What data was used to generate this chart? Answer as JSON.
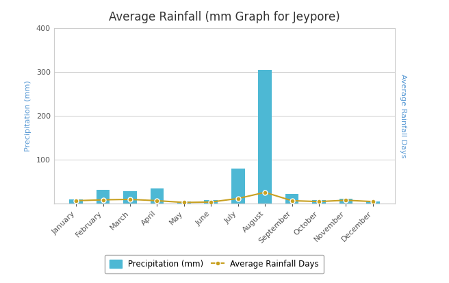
{
  "title": "Average Rainfall (mm Graph for Jeypore)",
  "months": [
    "January",
    "February",
    "March",
    "April",
    "May",
    "June",
    "July",
    "August",
    "September",
    "October",
    "November",
    "December"
  ],
  "precipitation_mm": [
    10,
    32,
    28,
    35,
    5,
    8,
    80,
    305,
    22,
    8,
    12,
    5
  ],
  "rainfall_days": [
    7,
    9,
    10,
    7,
    3,
    4,
    12,
    26,
    7,
    5,
    8,
    5
  ],
  "bar_color": "#4db8d4",
  "line_color": "#c8a020",
  "left_ylabel": "Precipitation (mm)",
  "right_ylabel": "Average Rainfall Days",
  "ylim_left": [
    0,
    400
  ],
  "yticks_left": [
    0,
    100,
    200,
    300,
    400
  ],
  "background_color": "#ffffff",
  "plot_bg_color": "#ffffff",
  "grid_color": "#cccccc",
  "title_fontsize": 12,
  "axis_label_fontsize": 8,
  "tick_fontsize": 8,
  "legend_label_bar": "Precipitation (mm)",
  "legend_label_line": "Average Rainfall Days",
  "ylabel_color": "#5b9bd5",
  "tick_color": "#555555",
  "outer_border_color": "#cccccc"
}
